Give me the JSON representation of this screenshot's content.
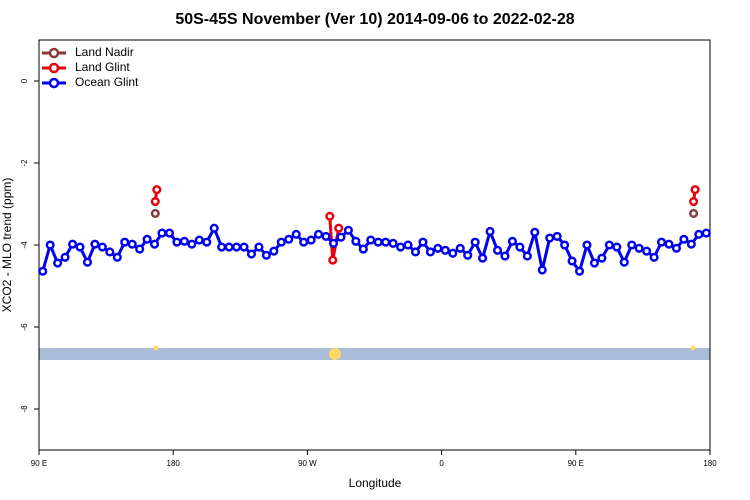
{
  "chart_data": {
    "type": "line",
    "title": "50S-45S November (Ver 10)   2014-09-06 to 2022-02-28",
    "x_label": "Longitude",
    "y_label": "XCO2 - MLO trend (ppm)",
    "xlim": [
      90,
      540
    ],
    "ylim": [
      -9,
      1
    ],
    "xticks": [
      {
        "value": 90,
        "label": "90 E"
      },
      {
        "value": 180,
        "label": "180"
      },
      {
        "value": 270,
        "label": "90 W"
      },
      {
        "value": 360,
        "label": "0"
      },
      {
        "value": 450,
        "label": "90 E"
      },
      {
        "value": 540,
        "label": "180"
      }
    ],
    "yticks": [
      -8,
      -6,
      -4,
      -2,
      0
    ],
    "legend": "top-left",
    "series": [
      {
        "name": "Land Nadir",
        "color": "#8b3a3a",
        "x": [
          168,
          300,
          529
        ],
        "values": [
          -3.23,
          null,
          -3.23
        ]
      },
      {
        "name": "Land Glint",
        "color": "#e8000b",
        "x": [
          168,
          169,
          200,
          285,
          287,
          291,
          450,
          529,
          530
        ],
        "values": [
          -2.94,
          -2.65,
          null,
          -3.3,
          -4.37,
          -3.59,
          null,
          -2.94,
          -2.65
        ]
      },
      {
        "name": "Ocean Glint",
        "color": "#0000ee",
        "x": [
          92.5,
          97.5,
          102.5,
          107.5,
          112.5,
          117.5,
          122.5,
          127.5,
          132.5,
          137.5,
          142.5,
          147.5,
          152.5,
          157.5,
          162.5,
          167.5,
          172.5,
          177.5,
          182.5,
          187.5,
          192.5,
          197.5,
          202.5,
          207.5,
          212.5,
          217.5,
          222.5,
          227.5,
          232.5,
          237.5,
          242.5,
          247.5,
          252.5,
          257.5,
          262.5,
          267.5,
          272.5,
          277.5,
          282.5,
          287.5,
          292.5,
          297.5,
          302.5,
          307.5,
          312.5,
          317.5,
          322.5,
          327.5,
          332.5,
          337.5,
          342.5,
          347.5,
          352.5,
          357.5,
          362.5,
          367.5,
          372.5,
          377.5,
          382.5,
          387.5,
          392.5,
          397.5,
          402.5,
          407.5,
          412.5,
          417.5,
          422.5,
          427.5,
          432.5,
          437.5,
          442.5,
          447.5,
          452.5,
          457.5,
          462.5,
          467.5,
          472.5,
          477.5,
          482.5,
          487.5,
          492.5,
          497.5,
          502.5,
          507.5,
          512.5,
          517.5,
          522.5,
          527.5,
          532.5,
          537.5
        ],
        "values": [
          -4.64,
          -4.0,
          -4.44,
          -4.3,
          -3.98,
          -4.05,
          -4.42,
          -3.98,
          -4.05,
          -4.17,
          -4.3,
          -3.93,
          -3.98,
          -4.1,
          -3.86,
          -3.98,
          -3.71,
          -3.71,
          -3.93,
          -3.91,
          -3.98,
          -3.88,
          -3.93,
          -3.59,
          -4.05,
          -4.05,
          -4.05,
          -4.05,
          -4.22,
          -4.05,
          -4.25,
          -4.15,
          -3.93,
          -3.86,
          -3.74,
          -3.93,
          -3.88,
          -3.74,
          -3.79,
          -3.96,
          -3.81,
          -3.64,
          -3.91,
          -4.1,
          -3.88,
          -3.93,
          -3.93,
          -3.96,
          -4.05,
          -4.0,
          -4.17,
          -3.93,
          -4.17,
          -4.08,
          -4.13,
          -4.2,
          -4.08,
          -4.25,
          -3.93,
          -4.32,
          -3.67,
          -4.13,
          -4.27,
          -3.91,
          -4.05,
          -4.27,
          -3.69,
          -4.61,
          -3.83,
          -3.79,
          -4.0,
          -4.39,
          -4.64,
          -4.0,
          -4.44,
          -4.32,
          -4.0,
          -4.05,
          -4.42,
          -4.0,
          -4.08,
          -4.15,
          -4.3,
          -3.93,
          -3.98,
          -4.08,
          -3.86,
          -3.98,
          -3.74,
          -3.71
        ]
      }
    ]
  }
}
